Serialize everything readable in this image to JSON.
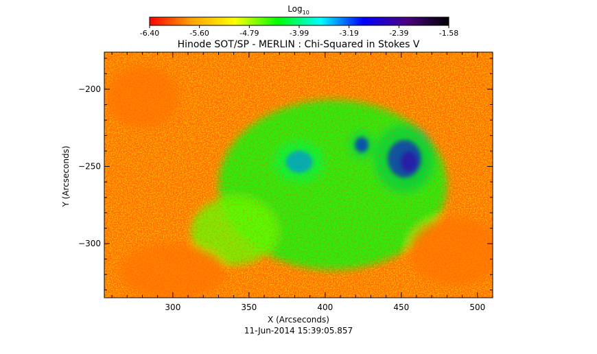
{
  "chart_data": {
    "type": "heatmap",
    "title": "Hinode SOT/SP - MERLIN : Chi-Squared in Stokes V",
    "xlabel": "X (Arcseconds)",
    "ylabel": "Y (Arcseconds)",
    "timestamp": "11-Jun-2014 15:39:05.857",
    "xlim": [
      255,
      510
    ],
    "ylim": [
      -335,
      -176
    ],
    "x_ticks": [
      300,
      350,
      400,
      450,
      500
    ],
    "y_ticks": [
      -200,
      -250,
      -300
    ],
    "colorbar": {
      "label_base": "Log",
      "label_sub": "10",
      "tick_labels": [
        "-6.40",
        "-5.60",
        "-4.79",
        "-3.99",
        "-3.19",
        "-2.39",
        "-1.58"
      ],
      "range": [
        -6.4,
        -1.58
      ],
      "colors": [
        "#ff0000",
        "#ffa500",
        "#ffff00",
        "#00ff00",
        "#00ffff",
        "#0000ff",
        "#4b0082",
        "#000000"
      ]
    },
    "regions": [
      {
        "cx": 383,
        "cy": -247,
        "rx": 16,
        "ry": 13,
        "level": -3.6
      },
      {
        "cx": 424,
        "cy": -236,
        "rx": 8,
        "ry": 9,
        "level": -3.2
      },
      {
        "cx": 452,
        "cy": -245,
        "rx": 20,
        "ry": 22,
        "level": -3.1
      },
      {
        "cx": 455,
        "cy": -247,
        "rx": 10,
        "ry": 12,
        "level": -2.8
      },
      {
        "cx": 405,
        "cy": -262,
        "rx": 75,
        "ry": 55,
        "level": -4.3
      },
      {
        "cx": 340,
        "cy": -292,
        "rx": 28,
        "ry": 22,
        "level": -4.6
      },
      {
        "cx": 280,
        "cy": -205,
        "rx": 24,
        "ry": 20,
        "level": -5.9
      },
      {
        "cx": 300,
        "cy": -318,
        "rx": 35,
        "ry": 18,
        "level": -5.9
      },
      {
        "cx": 485,
        "cy": -305,
        "rx": 30,
        "ry": 22,
        "level": -5.9
      }
    ]
  }
}
